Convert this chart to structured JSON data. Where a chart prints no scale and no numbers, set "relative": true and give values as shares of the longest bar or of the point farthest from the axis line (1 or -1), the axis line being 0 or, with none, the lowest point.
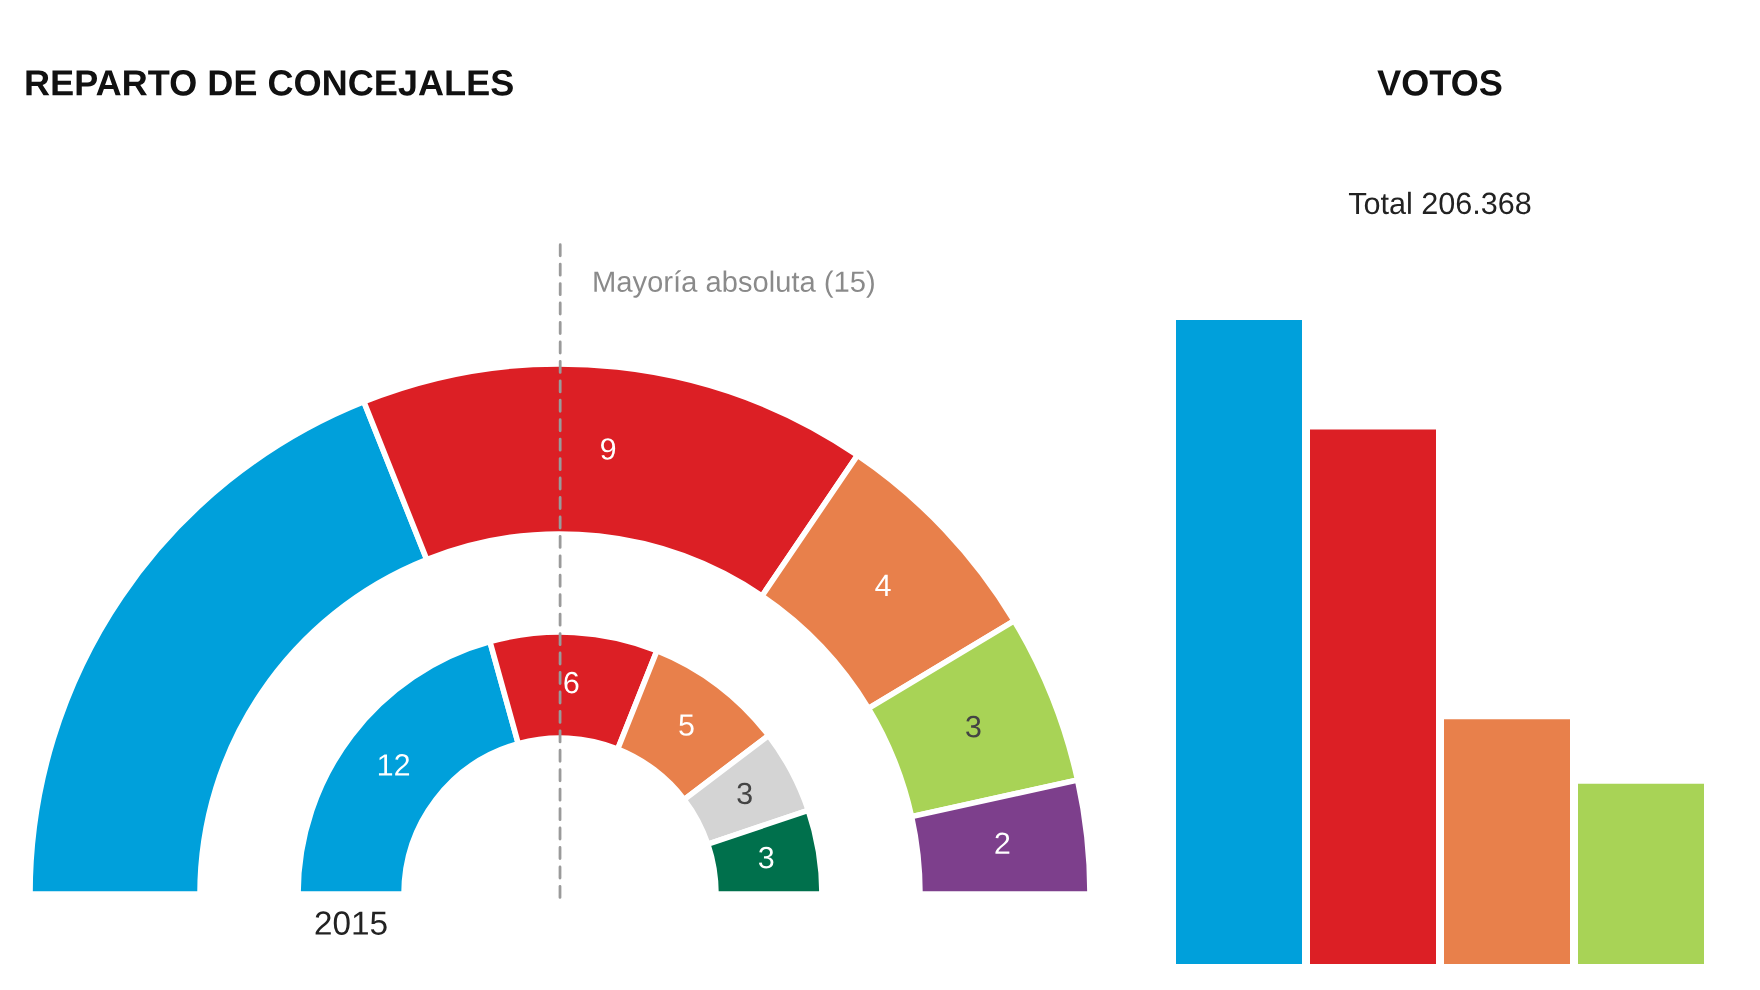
{
  "chart_data": [
    {
      "type": "donut",
      "title": "REPARTO DE CONCEJALES",
      "categories": [
        null,
        null,
        null,
        null,
        null
      ],
      "series": [
        {
          "colors": [
            "#00a0db",
            "#dc1f25",
            "#e8804b",
            "#a8d356",
            "#7d3f8c"
          ],
          "values": [
            11,
            9,
            4,
            3,
            2
          ],
          "value_labels": [
            null,
            "9",
            "4",
            "3",
            "2"
          ]
        },
        {
          "name": "2015",
          "colors": [
            "#00a0db",
            "#dc1f25",
            "#e8804b",
            "#d4d4d4",
            "#00704c"
          ],
          "values": [
            12,
            6,
            5,
            3,
            3
          ],
          "value_labels": [
            "12",
            "6",
            "5",
            "3",
            "3"
          ]
        }
      ],
      "annotations": [
        "Mayoría absoluta (15)"
      ]
    },
    {
      "type": "bar",
      "title": "VOTOS",
      "subtitle": "Total 206.368",
      "categories": [
        null,
        null,
        null,
        null
      ],
      "values": [
        1,
        0.83,
        0.38,
        0.28
      ],
      "colors": [
        "#00a0db",
        "#dc1f25",
        "#e8804b",
        "#a8d356"
      ],
      "relative": true
    }
  ]
}
